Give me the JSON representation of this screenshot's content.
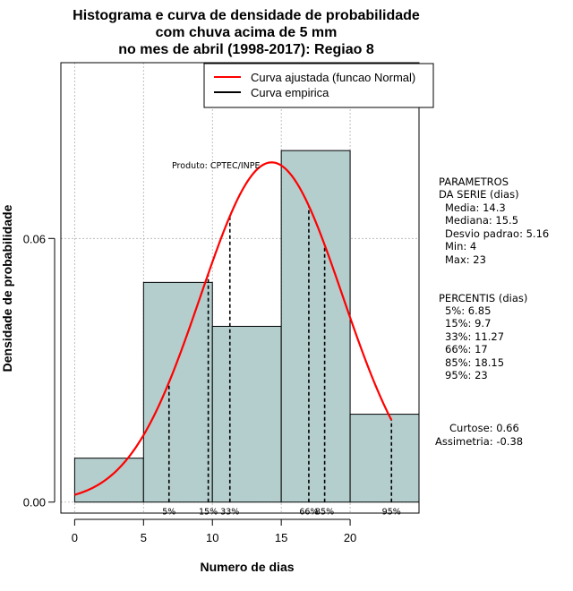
{
  "chart_data": {
    "type": "bar",
    "title_lines": [
      "Histograma e curva de densidade de probabilidade",
      "com chuva acima de 5 mm",
      "no mes de abril (1998-2017): Regiao 8"
    ],
    "xlabel": "Numero de dias",
    "ylabel": "Densidade de probabilidade",
    "xlim": [
      -1,
      25
    ],
    "ylim": [
      -0.0025,
      0.1
    ],
    "x_ticks": [
      0,
      5,
      10,
      15,
      20
    ],
    "y_ticks": [
      0.0,
      0.06
    ],
    "y_tick_labels": [
      "0.00",
      "0.06"
    ],
    "x_gridlines": [
      0,
      5,
      10,
      15,
      20,
      25
    ],
    "y_gridlines": [
      0.0,
      0.06,
      0.1
    ],
    "bins": [
      {
        "x0": 0,
        "x1": 5,
        "density": 0.01
      },
      {
        "x0": 5,
        "x1": 10,
        "density": 0.05
      },
      {
        "x0": 10,
        "x1": 15,
        "density": 0.04
      },
      {
        "x0": 15,
        "x1": 20,
        "density": 0.08
      },
      {
        "x0": 20,
        "x1": 25,
        "density": 0.02
      }
    ],
    "normal_fit": {
      "mean": 14.3,
      "sd": 5.16,
      "from": 0,
      "to": 23
    },
    "percentile_lines": [
      {
        "label": "5%",
        "x": 6.85
      },
      {
        "label": "15%",
        "x": 9.7
      },
      {
        "label": "33%",
        "x": 11.27
      },
      {
        "label": "66%",
        "x": 17
      },
      {
        "label": "85%",
        "x": 18.15
      },
      {
        "label": "95%",
        "x": 23
      }
    ],
    "legend": [
      {
        "label": "Curva ajustada (funcao Normal)",
        "color": "#ff0000"
      },
      {
        "label": "Curva empirica",
        "color": "#000000"
      }
    ],
    "annotation": "Produto: CPTEC/INPE",
    "parametros": {
      "title_lines": [
        "PARAMETROS",
        "DA SERIE (dias)"
      ],
      "items": [
        "Media: 14.3",
        "Mediana: 15.5",
        "Desvio padrao: 5.16",
        "Min: 4",
        "Max: 23"
      ]
    },
    "percentis": {
      "title": "PERCENTIS (dias)",
      "items": [
        "5%: 6.85",
        "15%: 9.7",
        "33%: 11.27",
        "66%: 17",
        "85%: 18.15",
        "95%: 23"
      ]
    },
    "shape": [
      "Curtose: 0.66",
      "Assimetria: -0.38"
    ]
  },
  "colors": {
    "bar_fill": "#b4cdcd",
    "bar_stroke": "#000000",
    "curve": "#ff0000",
    "grid": "#b0b0b0"
  }
}
